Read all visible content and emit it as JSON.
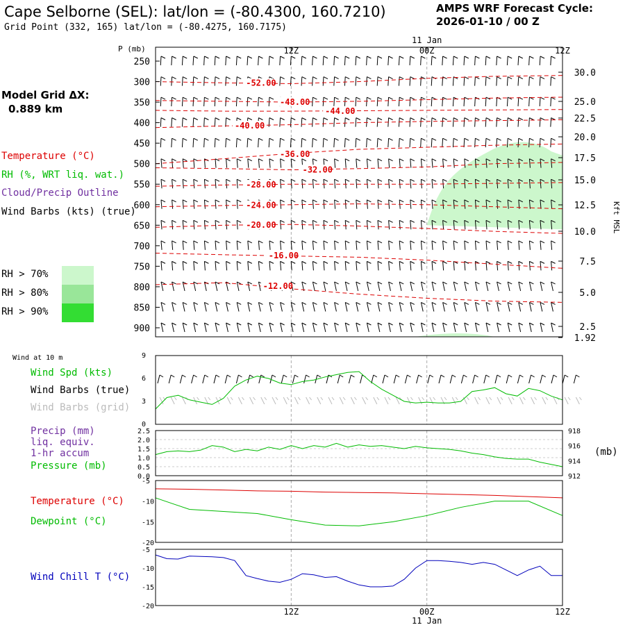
{
  "header": {
    "title": "Cape Selborne (SEL):  lat/lon = (-80.4300, 160.7210)",
    "subtitle": "Grid Point (332, 165) lat/lon = (-80.4275, 160.7175)",
    "cycle_label": "AMPS WRF Forecast Cycle:",
    "cycle_value": "2026-01-10 / 00  Z"
  },
  "left_legend": {
    "grid_label": "Model Grid ΔX:",
    "grid_value": "0.889 km",
    "temperature": "Temperature (°C)",
    "rh": "RH (%, WRT liq. wat.)",
    "cloud": "Cloud/Precip Outline",
    "barbs": "Wind Barbs (kts) (true)",
    "rh70": "RH > 70%",
    "rh80": "RH > 80%",
    "rh90": "RH > 90%"
  },
  "surface_legend": {
    "wind_at": "Wind at 10 m",
    "wind_spd": "Wind Spd (kts)",
    "barbs_true": "Wind Barbs (true)",
    "barbs_grid": "Wind Barbs (grid)",
    "precip": "Precip (mm)",
    "liq": "liq. equiv.",
    "accum": "1-hr accum",
    "pressure": "Pressure (mb)",
    "temperature": "Temperature (°C)",
    "dewpoint": "Dewpoint (°C)",
    "windchill": "Wind Chill T (°C)",
    "mb_unit": "(mb)"
  },
  "colors": {
    "temperature": "#dd0000",
    "rh_green": "#00bb00",
    "cloud_purple": "#7030a0",
    "windchill_blue": "#0000bb",
    "grid_gray": "#aaaaaa",
    "rh70": "#ccf7cc",
    "rh80": "#99e699",
    "rh90": "#33dd33"
  },
  "chart_data": [
    {
      "type": "line",
      "panel": "vertical_cross_section",
      "y_label": "P (mb)",
      "y_right_label": "Kft MSL",
      "date_label": "11 Jan",
      "time_ticks": [
        "12Z",
        "00Z",
        "12Z"
      ],
      "pressure_ticks": [
        "250",
        "300",
        "350",
        "400",
        "450",
        "500",
        "550",
        "600",
        "650",
        "700",
        "750",
        "800",
        "850",
        "900"
      ],
      "height_ticks": [
        "30.0",
        "25.0",
        "22.5",
        "20.0",
        "17.5",
        "15.0",
        "12.5",
        "10.0",
        "7.5",
        "5.0",
        "2.5",
        "1.92"
      ],
      "x_hours": [
        0,
        6,
        12,
        18,
        24,
        30,
        36
      ],
      "isotherms": [
        {
          "label": "-52.00",
          "p": [
            300,
            303,
            305,
            300,
            292,
            287,
            285
          ]
        },
        {
          "label": "-48.00",
          "p": [
            346,
            348,
            350,
            348,
            344,
            340,
            338
          ]
        },
        {
          "label": "-44.00",
          "p": [
            370,
            372,
            372,
            371,
            370,
            369,
            368
          ]
        },
        {
          "label": "-40.00",
          "p": [
            412,
            408,
            405,
            400,
            397,
            395,
            393
          ]
        },
        {
          "label": "-36.00",
          "p": [
            500,
            488,
            475,
            465,
            460,
            455,
            452
          ]
        },
        {
          "label": "-32.00",
          "p": [
            510,
            512,
            515,
            512,
            508,
            500,
            497
          ]
        },
        {
          "label": "-28.00",
          "p": [
            555,
            552,
            550,
            550,
            550,
            548,
            546
          ]
        },
        {
          "label": "-24.00",
          "p": [
            605,
            602,
            600,
            598,
            600,
            605,
            610
          ]
        },
        {
          "label": "-20.00",
          "p": [
            655,
            650,
            648,
            652,
            658,
            665,
            670
          ]
        },
        {
          "label": "-16.00",
          "p": [
            718,
            722,
            725,
            728,
            735,
            745,
            755
          ]
        },
        {
          "label": "-12.00",
          "p": [
            795,
            790,
            805,
            818,
            828,
            835,
            838
          ]
        }
      ],
      "rh_regions": [
        {
          "threshold": "RH > 70%",
          "hours_start": 24,
          "hours_end": 36,
          "p_top": 450,
          "p_bottom": 650
        },
        {
          "threshold": "RH > 70%",
          "hours_start": 24,
          "hours_end": 30,
          "p_top": 920,
          "p_bottom": 930
        }
      ]
    },
    {
      "type": "line",
      "panel": "wind_speed",
      "name": "Wind Spd (kts)",
      "ylim": [
        0,
        9
      ],
      "y_ticks": [
        "0",
        "3",
        "6",
        "9"
      ],
      "x_hours": [
        0,
        1,
        2,
        3,
        4,
        5,
        6,
        7,
        8,
        9,
        10,
        11,
        12,
        13,
        14,
        15,
        16,
        17,
        18,
        19,
        20,
        21,
        22,
        23,
        24,
        25,
        26,
        27,
        28,
        29,
        30,
        31,
        32,
        33,
        34,
        35,
        36
      ],
      "values": [
        2.0,
        3.5,
        3.8,
        3.2,
        2.9,
        2.6,
        3.4,
        5.0,
        5.8,
        6.3,
        6.0,
        5.4,
        5.2,
        5.6,
        5.8,
        6.2,
        6.5,
        6.8,
        6.9,
        5.6,
        4.6,
        3.8,
        3.0,
        2.8,
        2.9,
        2.8,
        2.8,
        3.0,
        4.3,
        4.5,
        4.8,
        4.0,
        3.7,
        4.7,
        4.4,
        3.7,
        3.2
      ]
    },
    {
      "type": "line",
      "panel": "precip_pressure",
      "name": "Pressure (mb)",
      "precip_ticks": [
        "0.0",
        "0.5",
        "1.0",
        "1.5",
        "2.0",
        "2.5"
      ],
      "pressure_ticks": [
        "912",
        "914",
        "916",
        "918"
      ],
      "ylim": [
        912,
        918
      ],
      "x_hours": [
        0,
        1,
        2,
        3,
        4,
        5,
        6,
        7,
        8,
        9,
        10,
        11,
        12,
        13,
        14,
        15,
        16,
        17,
        18,
        19,
        20,
        21,
        22,
        23,
        24,
        25,
        26,
        27,
        28,
        29,
        30,
        31,
        32,
        33,
        34,
        35,
        36
      ],
      "values": [
        914.8,
        915.2,
        915.3,
        915.2,
        915.4,
        916.0,
        915.8,
        915.2,
        915.5,
        915.3,
        915.8,
        915.5,
        916.0,
        915.6,
        916.0,
        915.8,
        916.3,
        915.8,
        916.1,
        915.9,
        916.0,
        915.8,
        915.6,
        915.9,
        915.7,
        915.6,
        915.5,
        915.3,
        915.0,
        914.8,
        914.5,
        914.3,
        914.2,
        914.2,
        913.8,
        913.5,
        913.2
      ]
    },
    {
      "type": "line",
      "panel": "temperature_dewpoint",
      "ylim": [
        -20,
        -5
      ],
      "y_ticks": [
        "-5",
        "-10",
        "-15",
        "-20"
      ],
      "x_hours": [
        0,
        3,
        6,
        9,
        12,
        15,
        18,
        21,
        24,
        27,
        30,
        33,
        36
      ],
      "series": [
        {
          "name": "Temperature (°C)",
          "values": [
            -7.0,
            -7.1,
            -7.3,
            -7.5,
            -7.6,
            -7.8,
            -7.9,
            -8.0,
            -8.2,
            -8.4,
            -8.6,
            -8.9,
            -9.2
          ]
        },
        {
          "name": "Dewpoint (°C)",
          "values": [
            -9.2,
            -12.0,
            -12.5,
            -13.0,
            -14.5,
            -15.8,
            -16.0,
            -15.0,
            -13.5,
            -11.5,
            -10.0,
            -10.0,
            -13.5
          ]
        }
      ]
    },
    {
      "type": "line",
      "panel": "wind_chill",
      "name": "Wind Chill T (°C)",
      "ylim": [
        -20,
        -5
      ],
      "y_ticks": [
        "-5",
        "-10",
        "-15",
        "-20"
      ],
      "x_hours": [
        0,
        1,
        2,
        3,
        4,
        5,
        6,
        7,
        8,
        9,
        10,
        11,
        12,
        13,
        14,
        15,
        16,
        17,
        18,
        19,
        20,
        21,
        22,
        23,
        24,
        25,
        26,
        27,
        28,
        29,
        30,
        31,
        32,
        33,
        34,
        35,
        36
      ],
      "values": [
        -6.5,
        -7.5,
        -7.6,
        -6.8,
        -6.9,
        -7.0,
        -7.2,
        -8.0,
        -12.0,
        -12.8,
        -13.5,
        -13.8,
        -13.0,
        -11.5,
        -11.8,
        -12.5,
        -12.3,
        -13.5,
        -14.5,
        -15.0,
        -15.0,
        -14.8,
        -13.0,
        -10.0,
        -8.0,
        -8.0,
        -8.2,
        -8.5,
        -9.0,
        -8.5,
        -9.0,
        -10.5,
        -12.0,
        -10.5,
        -9.5,
        -12.0,
        -12.0
      ]
    }
  ]
}
